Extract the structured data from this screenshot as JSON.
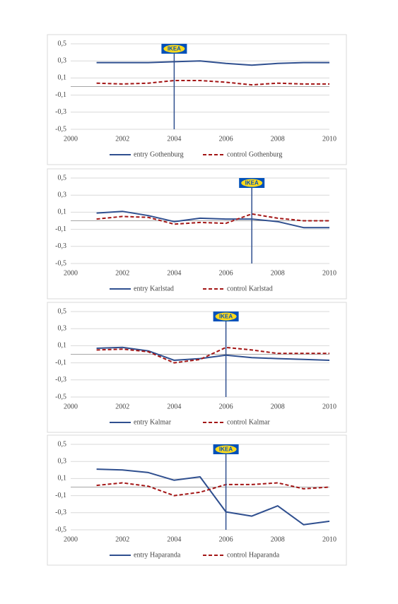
{
  "chart_data": [
    {
      "type": "line",
      "x": [
        2001,
        2002,
        2003,
        2004,
        2005,
        2006,
        2007,
        2008,
        2009,
        2010
      ],
      "series": [
        {
          "name": "entry Gothenburg",
          "color": "#2f4f8f",
          "style": "solid",
          "values": [
            0.28,
            0.28,
            0.28,
            0.29,
            0.3,
            0.27,
            0.25,
            0.27,
            0.28,
            0.28
          ]
        },
        {
          "name": "control Gothenburg",
          "color": "#a31515",
          "style": "dashed",
          "values": [
            0.04,
            0.03,
            0.04,
            0.07,
            0.07,
            0.05,
            0.02,
            0.04,
            0.03,
            0.03
          ]
        }
      ],
      "xlim": [
        2000,
        2010
      ],
      "xticks": [
        2000,
        2002,
        2004,
        2006,
        2008,
        2010
      ],
      "ylim": [
        -0.5,
        0.5
      ],
      "yticks": [
        {
          "value": -0.5,
          "label": "-0,5"
        },
        {
          "value": -0.3,
          "label": "-0,3"
        },
        {
          "value": -0.1,
          "label": "-0,1"
        },
        {
          "value": 0.1,
          "label": "0,1"
        },
        {
          "value": 0.3,
          "label": "0,3"
        },
        {
          "value": 0.5,
          "label": "0,5"
        }
      ],
      "grid": true,
      "entry_year": 2004,
      "marker_label": "IKEA"
    },
    {
      "type": "line",
      "x": [
        2001,
        2002,
        2003,
        2004,
        2005,
        2006,
        2007,
        2008,
        2009,
        2010
      ],
      "series": [
        {
          "name": "entry Karlstad",
          "color": "#2f4f8f",
          "style": "solid",
          "values": [
            0.09,
            0.11,
            0.06,
            -0.01,
            0.03,
            0.02,
            0.02,
            -0.01,
            -0.08,
            -0.08
          ]
        },
        {
          "name": "control Karlstad",
          "color": "#a31515",
          "style": "dashed",
          "values": [
            0.02,
            0.05,
            0.04,
            -0.04,
            -0.02,
            -0.03,
            0.08,
            0.03,
            0.0,
            0.0
          ]
        }
      ],
      "xlim": [
        2000,
        2010
      ],
      "xticks": [
        2000,
        2002,
        2004,
        2006,
        2008,
        2010
      ],
      "ylim": [
        -0.5,
        0.5
      ],
      "yticks": [
        {
          "value": -0.5,
          "label": "-0,5"
        },
        {
          "value": -0.3,
          "label": "-0,3"
        },
        {
          "value": -0.1,
          "label": "-0,1"
        },
        {
          "value": 0.1,
          "label": "0,1"
        },
        {
          "value": 0.3,
          "label": "0,3"
        },
        {
          "value": 0.5,
          "label": "0,5"
        }
      ],
      "grid": true,
      "entry_year": 2007,
      "marker_label": "IKEA"
    },
    {
      "type": "line",
      "x": [
        2001,
        2002,
        2003,
        2004,
        2005,
        2006,
        2007,
        2008,
        2009,
        2010
      ],
      "series": [
        {
          "name": "entry Kalmar",
          "color": "#2f4f8f",
          "style": "solid",
          "values": [
            0.07,
            0.08,
            0.04,
            -0.07,
            -0.05,
            -0.01,
            -0.04,
            -0.05,
            -0.06,
            -0.07
          ]
        },
        {
          "name": "control Kalmar",
          "color": "#a31515",
          "style": "dashed",
          "values": [
            0.05,
            0.06,
            0.03,
            -0.1,
            -0.06,
            0.08,
            0.05,
            0.01,
            0.01,
            0.01
          ]
        }
      ],
      "xlim": [
        2000,
        2010
      ],
      "xticks": [
        2000,
        2002,
        2004,
        2006,
        2008,
        2010
      ],
      "ylim": [
        -0.5,
        0.5
      ],
      "yticks": [
        {
          "value": -0.5,
          "label": "-0,5"
        },
        {
          "value": -0.3,
          "label": "-0,3"
        },
        {
          "value": -0.1,
          "label": "-0,1"
        },
        {
          "value": 0.1,
          "label": "0,1"
        },
        {
          "value": 0.3,
          "label": "0,3"
        },
        {
          "value": 0.5,
          "label": "0,5"
        }
      ],
      "grid": true,
      "entry_year": 2006,
      "marker_label": "IKEA"
    },
    {
      "type": "line",
      "x": [
        2001,
        2002,
        2003,
        2004,
        2005,
        2006,
        2007,
        2008,
        2009,
        2010
      ],
      "series": [
        {
          "name": "entry Haparanda",
          "color": "#2f4f8f",
          "style": "solid",
          "values": [
            0.21,
            0.2,
            0.17,
            0.08,
            0.12,
            -0.29,
            -0.34,
            -0.22,
            -0.44,
            -0.4
          ]
        },
        {
          "name": "control Haparanda",
          "color": "#a31515",
          "style": "dashed",
          "values": [
            0.02,
            0.05,
            0.01,
            -0.1,
            -0.06,
            0.03,
            0.03,
            0.05,
            -0.02,
            0.0
          ]
        }
      ],
      "xlim": [
        2000,
        2010
      ],
      "xticks": [
        2000,
        2002,
        2004,
        2006,
        2008,
        2010
      ],
      "ylim": [
        -0.5,
        0.5
      ],
      "yticks": [
        {
          "value": -0.5,
          "label": "-0,5"
        },
        {
          "value": -0.3,
          "label": "-0,3"
        },
        {
          "value": -0.1,
          "label": "-0,1"
        },
        {
          "value": 0.1,
          "label": "0,1"
        },
        {
          "value": 0.3,
          "label": "0,3"
        },
        {
          "value": 0.5,
          "label": "0,5"
        }
      ],
      "grid": true,
      "entry_year": 2006,
      "marker_label": "IKEA"
    }
  ]
}
